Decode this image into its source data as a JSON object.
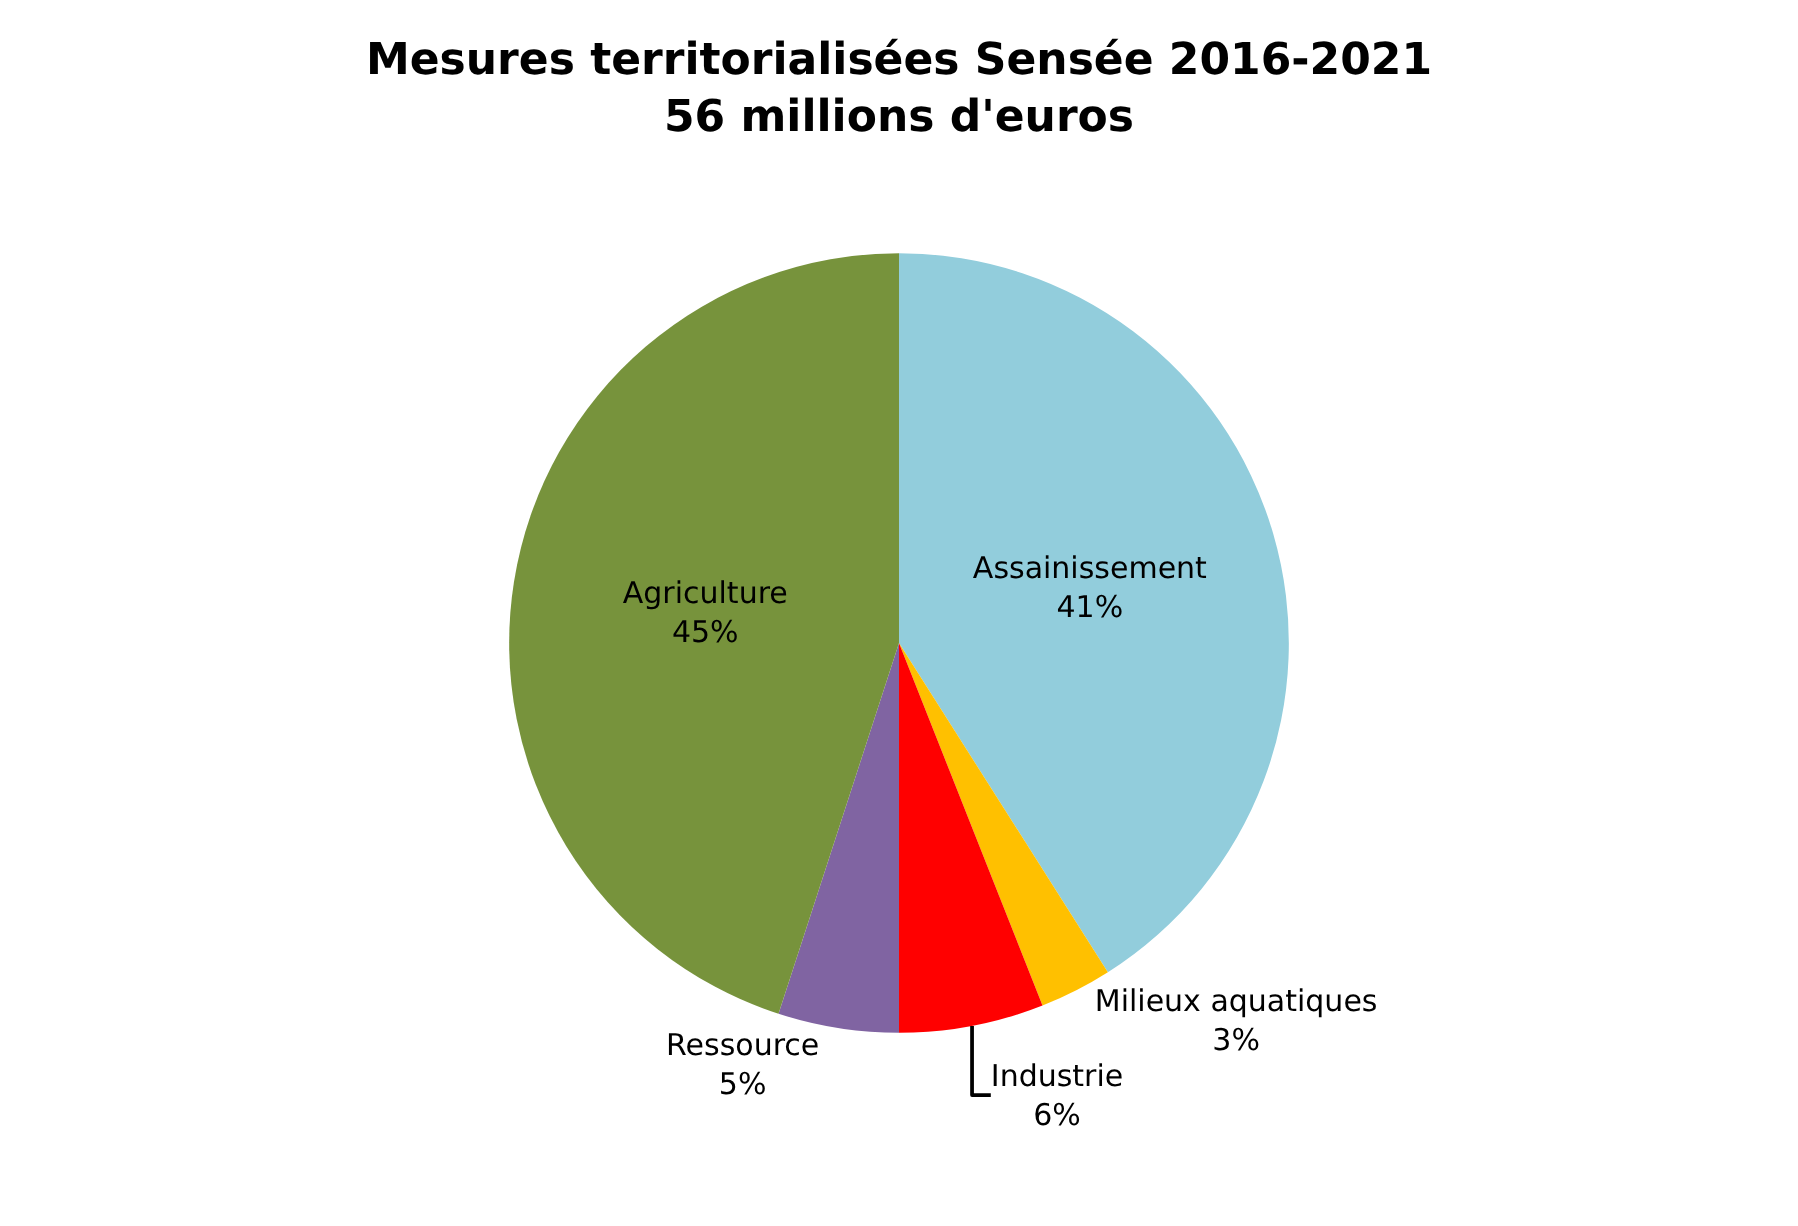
{
  "chart_data": {
    "type": "pie",
    "title": "Mesures territorialisées Sensée 2016-2021",
    "subtitle": "56 millions d'euros",
    "categories": [
      "Assainissement",
      "Milieux aquatiques",
      "Industrie",
      "Ressource",
      "Agriculture"
    ],
    "values": [
      41,
      3,
      6,
      5,
      45
    ],
    "value_labels": [
      "41%",
      "3%",
      "6%",
      "5%",
      "45%"
    ],
    "colors": [
      "#92cddc",
      "#ffc000",
      "#ff0000",
      "#8064a2",
      "#77933c"
    ],
    "legend": false
  }
}
